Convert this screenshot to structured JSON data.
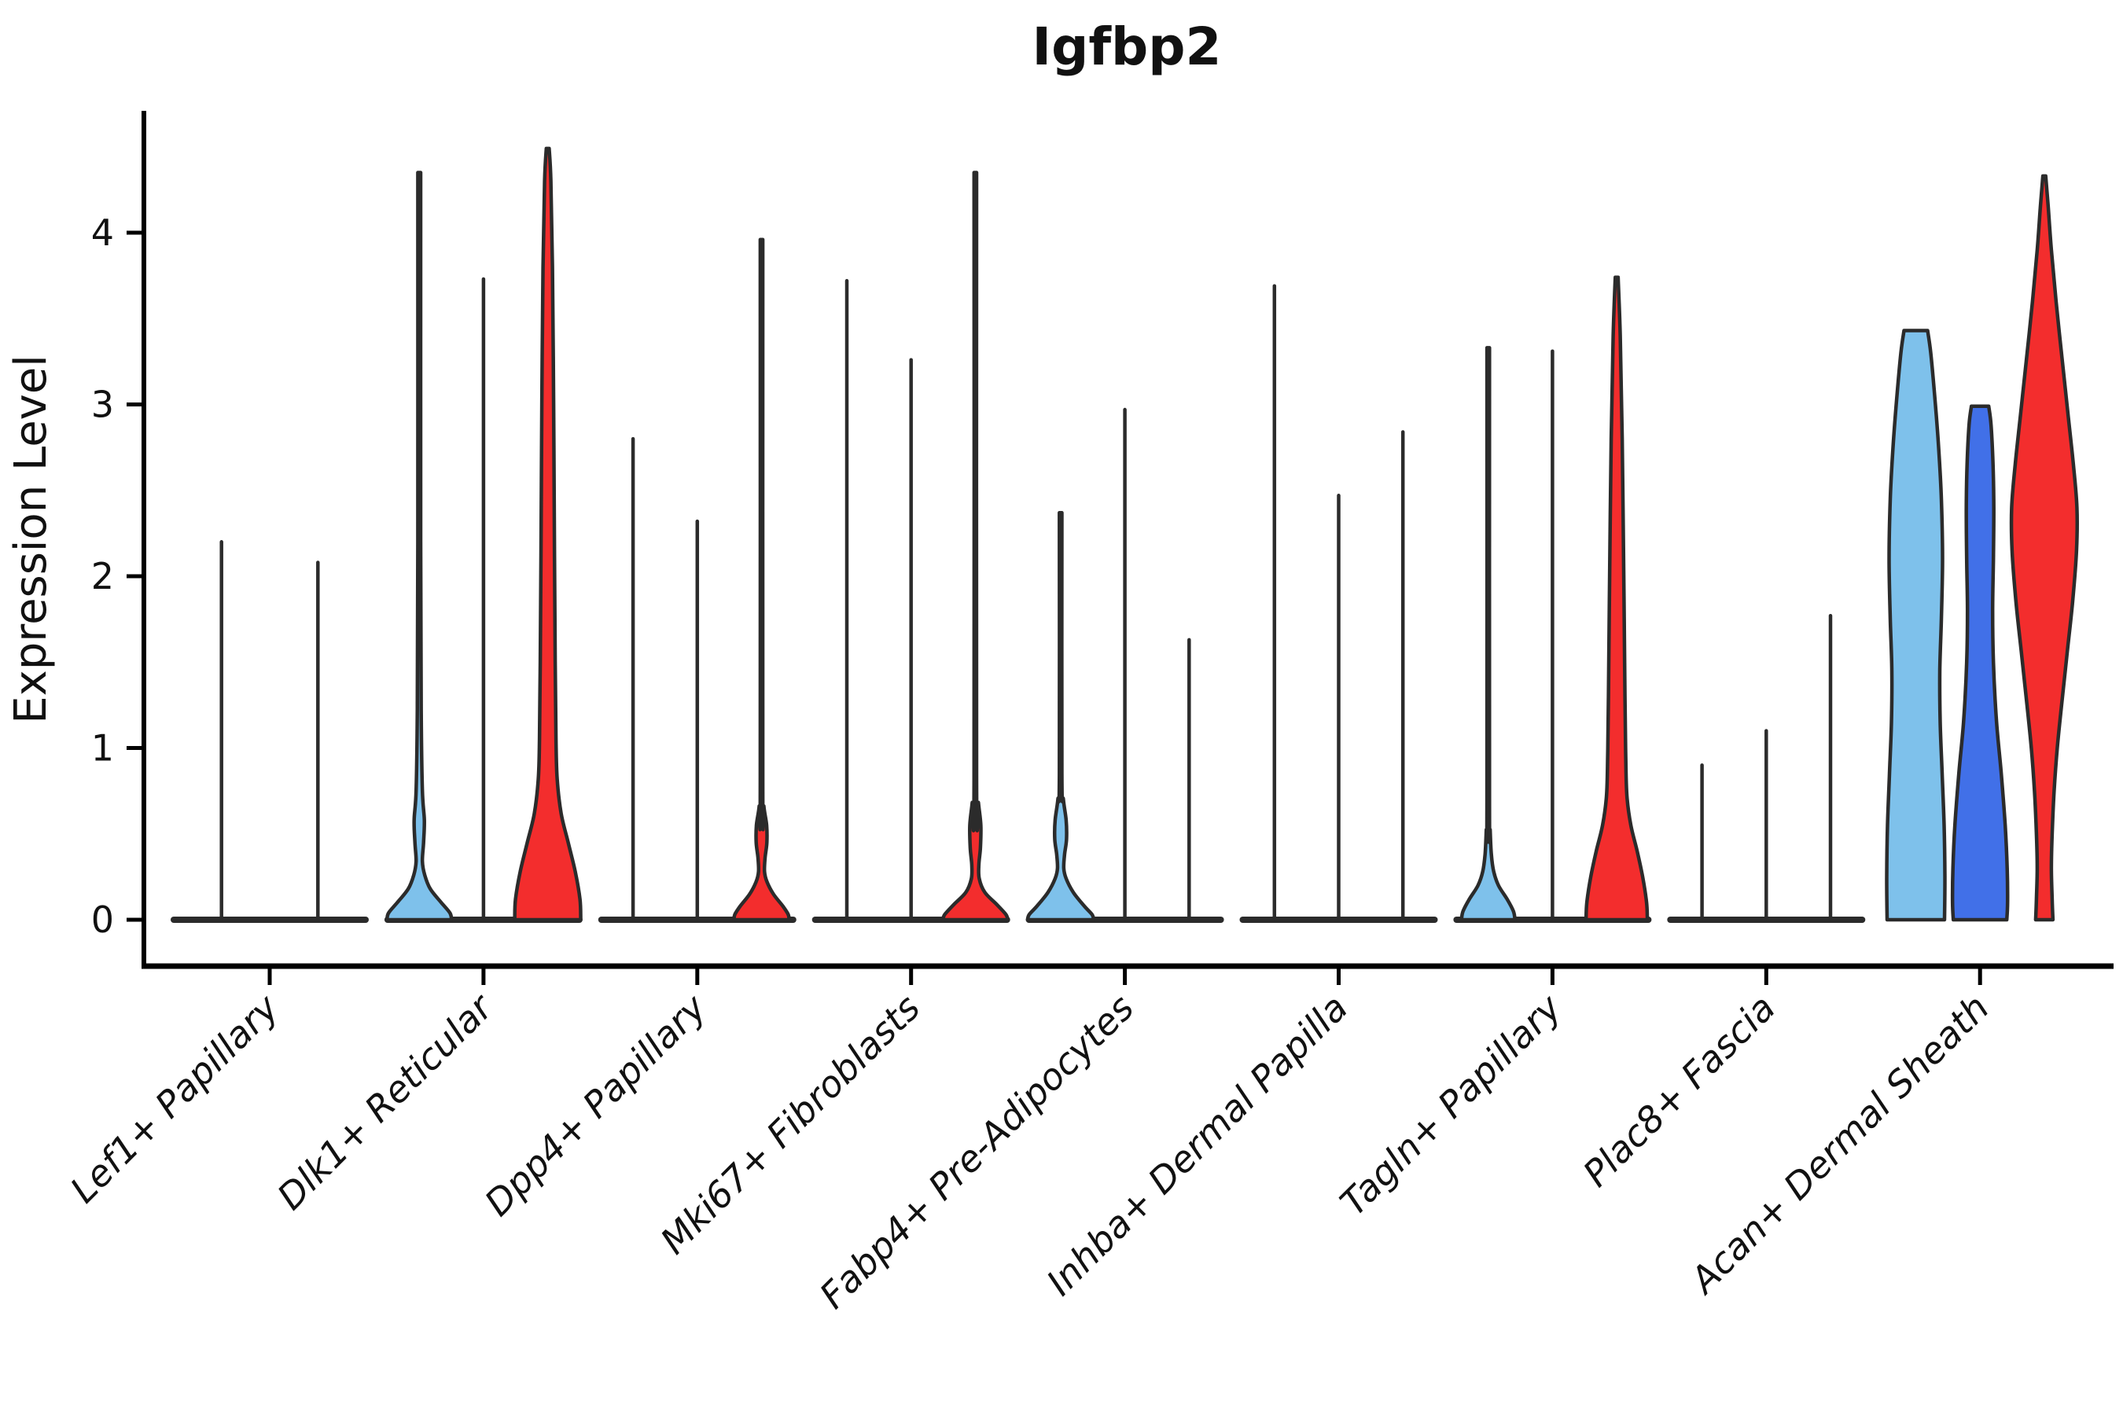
{
  "chart_data": {
    "type": "violin",
    "title": "Igfbp2",
    "ylabel": "Expression Level",
    "xlabel": "",
    "y_ticks": [
      0,
      1,
      2,
      3,
      4
    ],
    "ylim": [
      -0.27,
      4.7
    ],
    "grid": "off",
    "legend": "none",
    "colors": {
      "skyblue": "#7EC1EB",
      "royalblue": "#4170E8",
      "red": "#F32D2D",
      "ink": "#2B2B2B"
    },
    "categories": [
      "Lef1+ Papillary",
      "Dlk1+ Reticular",
      "Dpp4+ Papillary",
      "Mki67+ Fibroblasts",
      "Fabp4+ Pre-Adipocytes",
      "Inhba+ Dermal Papilla",
      "Tagln+ Papillary",
      "Plac8+ Fascia",
      "Acan+ Dermal Sheath"
    ],
    "groups": [
      {
        "category": "Lef1+ Papillary",
        "violins": [
          {
            "fill": null,
            "max": 2.2,
            "offset": -61.3
          },
          {
            "fill": null,
            "max": 2.08,
            "offset": 61.3
          }
        ]
      },
      {
        "category": "Dlk1+ Reticular",
        "violins": [
          {
            "fill": "skyblue",
            "max": 4.35,
            "offset": -81.7,
            "shape": [
              [
                4.35,
                1.8
              ],
              [
                2.2,
                1.8
              ],
              [
                1.2,
                2.5
              ],
              [
                0.75,
                4
              ],
              [
                0.58,
                6.5
              ],
              [
                0.45,
                5.5
              ],
              [
                0.34,
                4
              ],
              [
                0.26,
                7
              ],
              [
                0.18,
                14
              ],
              [
                0.1,
                28
              ],
              [
                0.04,
                39
              ],
              [
                0,
                41
              ]
            ]
          },
          {
            "fill": null,
            "max": 3.73,
            "offset": 0
          },
          {
            "fill": "red",
            "max": 4.49,
            "offset": 81.7,
            "shape": [
              [
                4.49,
                1.8
              ],
              [
                4.3,
                4
              ],
              [
                3.8,
                6
              ],
              [
                3.0,
                7.5
              ],
              [
                2.2,
                8.5
              ],
              [
                1.5,
                9.5
              ],
              [
                1.05,
                10.5
              ],
              [
                0.82,
                12
              ],
              [
                0.62,
                17
              ],
              [
                0.45,
                26
              ],
              [
                0.28,
                35
              ],
              [
                0.12,
                41
              ],
              [
                0,
                42
              ]
            ]
          }
        ]
      },
      {
        "category": "Dpp4+ Papillary",
        "violins": [
          {
            "fill": null,
            "max": 2.8,
            "offset": -81.7
          },
          {
            "fill": null,
            "max": 2.32,
            "offset": 0
          },
          {
            "fill": "red",
            "max": 3.96,
            "offset": 81.7,
            "shape": [
              [
                3.96,
                1.6
              ],
              [
                0.8,
                1.6
              ],
              [
                0.66,
                3
              ],
              [
                0.55,
                6.5
              ],
              [
                0.45,
                6.8
              ],
              [
                0.36,
                4.5
              ],
              [
                0.28,
                3.8
              ],
              [
                0.22,
                7
              ],
              [
                0.15,
                15
              ],
              [
                0.08,
                27
              ],
              [
                0.03,
                34
              ],
              [
                0,
                35
              ]
            ]
          }
        ]
      },
      {
        "category": "Mki67+ Fibroblasts",
        "violins": [
          {
            "fill": null,
            "max": 3.72,
            "offset": -81.7
          },
          {
            "fill": null,
            "max": 3.26,
            "offset": 0
          },
          {
            "fill": "red",
            "max": 4.35,
            "offset": 81.7,
            "shape": [
              [
                4.35,
                1.6
              ],
              [
                0.82,
                1.6
              ],
              [
                0.68,
                4
              ],
              [
                0.55,
                7
              ],
              [
                0.42,
                6.5
              ],
              [
                0.32,
                4.5
              ],
              [
                0.24,
                5
              ],
              [
                0.16,
                12
              ],
              [
                0.09,
                27
              ],
              [
                0.03,
                39
              ],
              [
                0,
                41
              ]
            ]
          }
        ]
      },
      {
        "category": "Fabp4+ Pre-Adipocytes",
        "violins": [
          {
            "fill": "skyblue",
            "max": 2.37,
            "offset": -81.7,
            "shape": [
              [
                2.37,
                1.6
              ],
              [
                0.85,
                1.6
              ],
              [
                0.7,
                3.5
              ],
              [
                0.58,
                7
              ],
              [
                0.47,
                7.5
              ],
              [
                0.38,
                5
              ],
              [
                0.3,
                4
              ],
              [
                0.24,
                7
              ],
              [
                0.16,
                16
              ],
              [
                0.08,
                30
              ],
              [
                0.03,
                40
              ],
              [
                0,
                42
              ]
            ]
          },
          {
            "fill": null,
            "max": 2.97,
            "offset": 0
          },
          {
            "fill": null,
            "max": 1.63,
            "offset": 81.7
          }
        ]
      },
      {
        "category": "Inhba+ Dermal Papilla",
        "violins": [
          {
            "fill": null,
            "max": 3.69,
            "offset": -81.7
          },
          {
            "fill": null,
            "max": 2.47,
            "offset": 0
          },
          {
            "fill": null,
            "max": 2.84,
            "offset": 81.7
          }
        ]
      },
      {
        "category": "Tagln+ Papillary",
        "violins": [
          {
            "fill": "skyblue",
            "max": 3.33,
            "offset": -81.7,
            "shape": [
              [
                3.33,
                1.6
              ],
              [
                0.7,
                1.6
              ],
              [
                0.52,
                2.5
              ],
              [
                0.38,
                4
              ],
              [
                0.28,
                7
              ],
              [
                0.2,
                13
              ],
              [
                0.12,
                24
              ],
              [
                0.05,
                32
              ],
              [
                0,
                34
              ]
            ]
          },
          {
            "fill": null,
            "max": 3.31,
            "offset": 0
          },
          {
            "fill": "red",
            "max": 3.74,
            "offset": 81.7,
            "shape": [
              [
                3.74,
                1.8
              ],
              [
                3.4,
                4.5
              ],
              [
                2.8,
                7
              ],
              [
                2.0,
                9
              ],
              [
                1.3,
                10.5
              ],
              [
                0.95,
                11.5
              ],
              [
                0.72,
                13
              ],
              [
                0.55,
                18
              ],
              [
                0.4,
                26
              ],
              [
                0.25,
                33
              ],
              [
                0.1,
                38
              ],
              [
                0,
                39
              ]
            ]
          }
        ]
      },
      {
        "category": "Plac8+ Fascia",
        "violins": [
          {
            "fill": null,
            "max": 0.9,
            "offset": -81.7
          },
          {
            "fill": null,
            "max": 1.1,
            "offset": 0
          },
          {
            "fill": null,
            "max": 1.77,
            "offset": 81.7
          }
        ]
      },
      {
        "category": "Acan+ Dermal Sheath",
        "baseline": false,
        "violins": [
          {
            "fill": "skyblue",
            "max": 3.43,
            "offset": -81.7,
            "flat_top": true,
            "shape": [
              [
                3.43,
                15
              ],
              [
                3.3,
                19
              ],
              [
                3.05,
                24
              ],
              [
                2.75,
                29
              ],
              [
                2.45,
                32.5
              ],
              [
                2.1,
                34
              ],
              [
                1.75,
                32.5
              ],
              [
                1.45,
                30.5
              ],
              [
                1.15,
                31
              ],
              [
                0.85,
                33.5
              ],
              [
                0.55,
                36
              ],
              [
                0.25,
                37
              ],
              [
                0,
                36.5
              ]
            ]
          },
          {
            "fill": "royalblue",
            "max": 2.99,
            "offset": 0,
            "flat_top": true,
            "shape": [
              [
                2.99,
                11
              ],
              [
                2.88,
                14
              ],
              [
                2.65,
                16.5
              ],
              [
                2.4,
                17.5
              ],
              [
                2.1,
                17
              ],
              [
                1.8,
                16
              ],
              [
                1.5,
                17
              ],
              [
                1.15,
                21
              ],
              [
                0.85,
                27
              ],
              [
                0.55,
                32
              ],
              [
                0.3,
                34.5
              ],
              [
                0.1,
                35
              ],
              [
                0,
                34
              ]
            ]
          },
          {
            "fill": "red",
            "max": 4.33,
            "offset": 81.7,
            "shape": [
              [
                4.33,
                1.8
              ],
              [
                4.15,
                5
              ],
              [
                3.9,
                9
              ],
              [
                3.6,
                15
              ],
              [
                3.25,
                23
              ],
              [
                2.95,
                30
              ],
              [
                2.65,
                37
              ],
              [
                2.4,
                41.5
              ],
              [
                2.15,
                41
              ],
              [
                1.85,
                36
              ],
              [
                1.55,
                29
              ],
              [
                1.25,
                22
              ],
              [
                1.0,
                16.5
              ],
              [
                0.75,
                12.5
              ],
              [
                0.5,
                10
              ],
              [
                0.3,
                9
              ],
              [
                0.12,
                10
              ],
              [
                0,
                11
              ]
            ]
          }
        ]
      }
    ]
  }
}
